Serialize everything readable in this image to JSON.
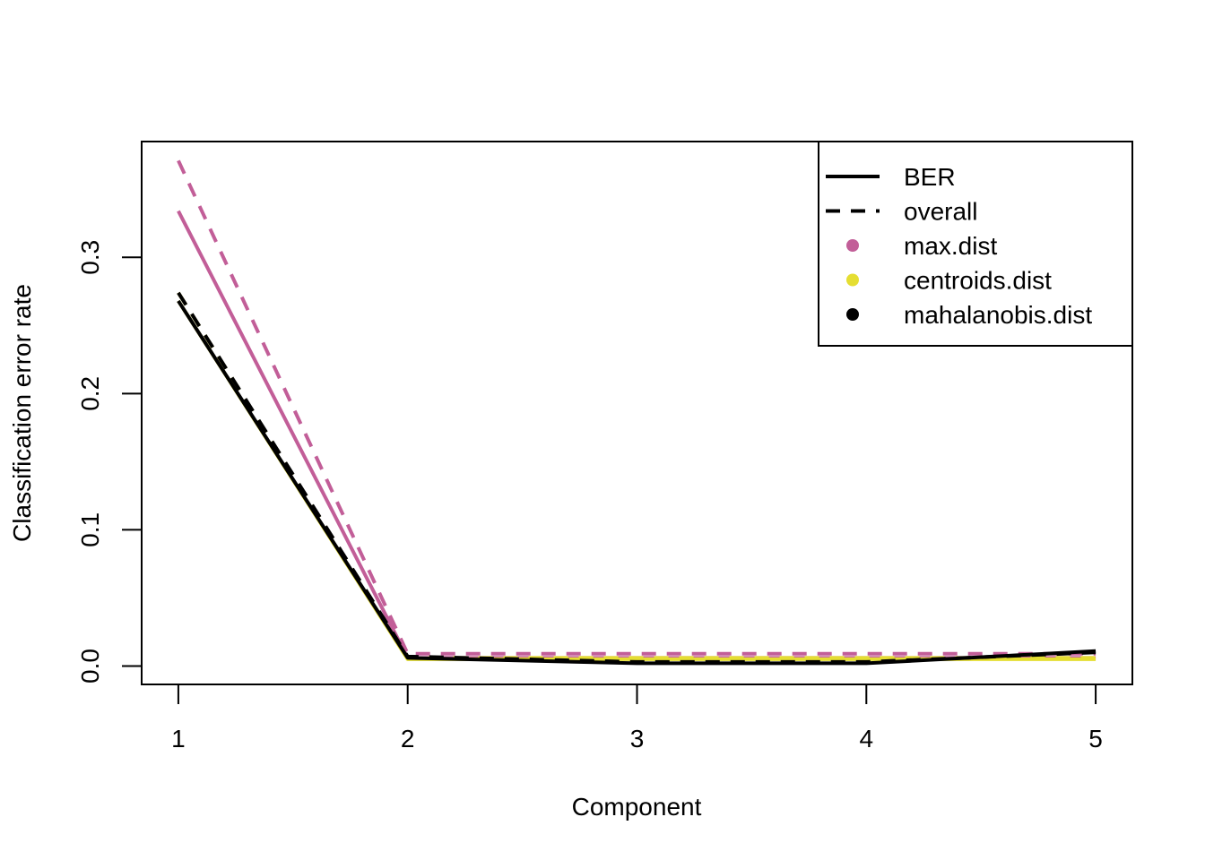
{
  "chart_data": {
    "type": "line",
    "title": "",
    "xlabel": "Component",
    "ylabel": "Classification error rate",
    "x": [
      1,
      2,
      3,
      4,
      5
    ],
    "x_tick_labels": [
      "1",
      "2",
      "3",
      "4",
      "5"
    ],
    "y_ticks": [
      0.0,
      0.1,
      0.2,
      0.3
    ],
    "y_tick_labels": [
      "0.0",
      "0.1",
      "0.2",
      "0.3"
    ],
    "xlim": [
      0.84,
      5.16
    ],
    "ylim": [
      -0.0135,
      0.385
    ],
    "grid": false,
    "legend_position": "top-right",
    "legend": [
      {
        "label": "BER",
        "kind": "line",
        "linetype": "solid",
        "color": "#000000"
      },
      {
        "label": "overall",
        "kind": "line",
        "linetype": "dashed",
        "color": "#000000"
      },
      {
        "label": "max.dist",
        "kind": "point",
        "color": "#C25E98"
      },
      {
        "label": "centroids.dist",
        "kind": "point",
        "color": "#E5DE32"
      },
      {
        "label": "mahalanobis.dist",
        "kind": "point",
        "color": "#000000"
      }
    ],
    "series": [
      {
        "name": "max.dist BER",
        "distance": "max.dist",
        "measure": "BER",
        "linetype": "solid",
        "color": "#C25E98",
        "values": [
          0.334,
          0.006,
          0.006,
          0.006,
          0.006
        ]
      },
      {
        "name": "max.dist overall",
        "distance": "max.dist",
        "measure": "overall",
        "linetype": "dashed",
        "color": "#C25E98",
        "values": [
          0.371,
          0.009,
          0.009,
          0.009,
          0.009
        ]
      },
      {
        "name": "centroids.dist BER",
        "distance": "centroids.dist",
        "measure": "BER",
        "linetype": "solid",
        "color": "#E5DE32",
        "values": [
          0.268,
          0.005,
          0.005,
          0.005,
          0.005
        ]
      },
      {
        "name": "centroids.dist overall",
        "distance": "centroids.dist",
        "measure": "overall",
        "linetype": "dashed",
        "color": "#E5DE32",
        "values": [
          0.274,
          0.006,
          0.006,
          0.006,
          0.006
        ]
      },
      {
        "name": "mahalanobis.dist BER",
        "distance": "mahalanobis.dist",
        "measure": "BER",
        "linetype": "solid",
        "color": "#000000",
        "values": [
          0.268,
          0.006,
          0.002,
          0.002,
          0.011
        ]
      },
      {
        "name": "mahalanobis.dist overall",
        "distance": "mahalanobis.dist",
        "measure": "overall",
        "linetype": "dashed",
        "color": "#000000",
        "values": [
          0.274,
          0.007,
          0.003,
          0.003,
          0.01
        ]
      }
    ]
  }
}
